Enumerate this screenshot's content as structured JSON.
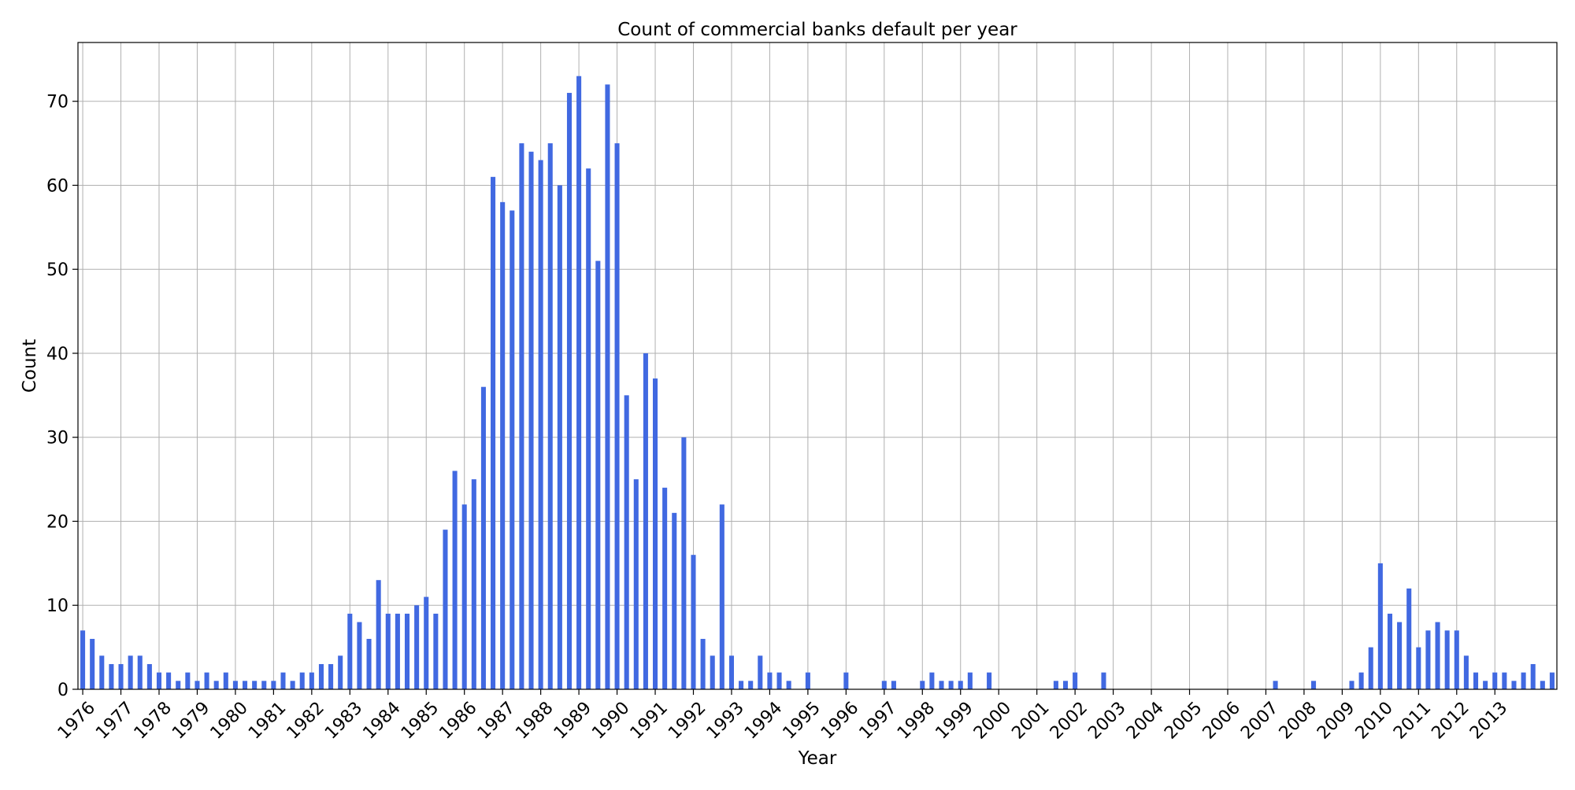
{
  "chart_data": {
    "type": "bar",
    "title": "Count of commercial banks default per year",
    "xlabel": "Year",
    "ylabel": "Count",
    "ylim": [
      0,
      77
    ],
    "yticks": [
      0,
      10,
      20,
      30,
      40,
      50,
      60,
      70
    ],
    "grid": true,
    "bar_color": "#4169e1",
    "year_labels": [
      "1976",
      "1977",
      "1978",
      "1979",
      "1980",
      "1981",
      "1982",
      "1983",
      "1984",
      "1985",
      "1986",
      "1987",
      "1988",
      "1989",
      "1990",
      "1991",
      "1992",
      "1993",
      "1994",
      "1995",
      "1996",
      "1997",
      "1998",
      "1999",
      "2000",
      "2001",
      "2002",
      "2003",
      "2004",
      "2005",
      "2006",
      "2007",
      "2008",
      "2009",
      "2010",
      "2011",
      "2012",
      "2013"
    ],
    "values": [
      7,
      6,
      4,
      3,
      3,
      4,
      4,
      3,
      2,
      2,
      1,
      2,
      1,
      2,
      1,
      2,
      1,
      1,
      1,
      1,
      1,
      2,
      1,
      2,
      2,
      3,
      3,
      4,
      9,
      8,
      6,
      13,
      9,
      9,
      9,
      10,
      11,
      9,
      19,
      26,
      22,
      25,
      36,
      61,
      58,
      57,
      65,
      64,
      63,
      65,
      60,
      71,
      73,
      62,
      51,
      72,
      65,
      35,
      25,
      40,
      37,
      24,
      21,
      30,
      16,
      6,
      4,
      22,
      4,
      1,
      1,
      4,
      2,
      2,
      1,
      0,
      2,
      0,
      0,
      0,
      2,
      0,
      0,
      0,
      1,
      1,
      0,
      0,
      1,
      2,
      1,
      1,
      1,
      2,
      0,
      2,
      0,
      0,
      0,
      0,
      0,
      0,
      1,
      1,
      2,
      0,
      0,
      2,
      0,
      0,
      0,
      0,
      0,
      0,
      0,
      0,
      0,
      0,
      0,
      0,
      0,
      0,
      0,
      0,
      0,
      1,
      0,
      0,
      0,
      1,
      0,
      0,
      0,
      1,
      2,
      5,
      15,
      9,
      8,
      12,
      5,
      7,
      8,
      7,
      7,
      4,
      2,
      1,
      2,
      2,
      1,
      2,
      3,
      1,
      2
    ]
  }
}
